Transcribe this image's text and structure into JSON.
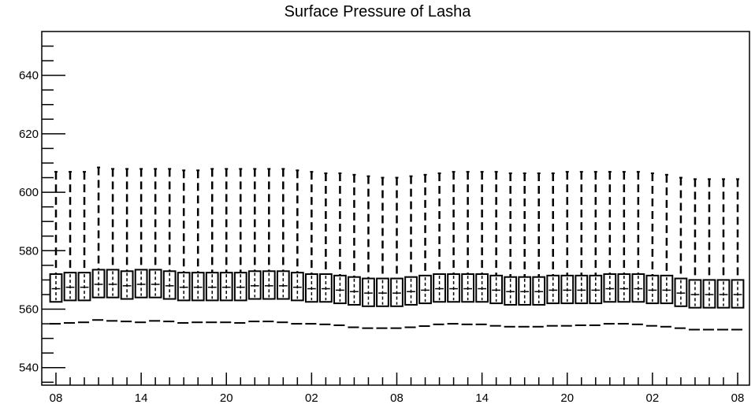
{
  "chart_data": {
    "type": "box",
    "title": "Surface Pressure of Lasha",
    "xlabel": "",
    "ylabel": "",
    "ylim": [
      534,
      655
    ],
    "yticks": [
      540,
      560,
      580,
      600,
      620,
      640
    ],
    "xticks": [
      {
        "index": 0,
        "label": "08"
      },
      {
        "index": 6,
        "label": "14"
      },
      {
        "index": 12,
        "label": "20"
      },
      {
        "index": 18,
        "label": "02"
      },
      {
        "index": 24,
        "label": "08"
      },
      {
        "index": 30,
        "label": "14"
      },
      {
        "index": 36,
        "label": "20"
      },
      {
        "index": 42,
        "label": "02"
      },
      {
        "index": 48,
        "label": "08"
      }
    ],
    "boxes": {
      "q1": [
        562.5,
        563,
        563,
        564,
        564,
        563.5,
        564,
        564,
        563.5,
        563,
        563,
        563,
        563,
        563,
        563.5,
        563.5,
        563.5,
        563,
        562.5,
        562.5,
        562,
        561.5,
        561,
        561,
        561,
        561.5,
        562,
        562.5,
        562.5,
        562.5,
        562.5,
        562,
        561.5,
        561.5,
        561.5,
        562,
        562,
        562,
        562,
        562.5,
        562.5,
        562.5,
        562,
        562,
        561,
        560.5,
        560.5,
        560.5,
        560.5
      ],
      "median": [
        567,
        567.5,
        567.5,
        568.5,
        568.5,
        568,
        568.5,
        568.5,
        568,
        567.5,
        567.5,
        567.5,
        567.5,
        567.5,
        568,
        568,
        568,
        567.5,
        567,
        567,
        566.5,
        566,
        565.5,
        565.5,
        565.5,
        566,
        566.5,
        567,
        567,
        567,
        567,
        566.5,
        566,
        566,
        566,
        566.5,
        566.5,
        566.5,
        566.5,
        567,
        567,
        567,
        566.5,
        566.5,
        565.5,
        565,
        565,
        565,
        565
      ],
      "q3": [
        572,
        572.5,
        572.5,
        573.5,
        573.5,
        573,
        573.5,
        573.5,
        573,
        572.5,
        572.5,
        572.5,
        572.5,
        572.5,
        573,
        573,
        573,
        572.5,
        572,
        572,
        571.5,
        571,
        570.5,
        570.5,
        570.5,
        571,
        571.5,
        572,
        572,
        572,
        572,
        571.5,
        571,
        571,
        571,
        571.5,
        571.5,
        571.5,
        571.5,
        572,
        572,
        572,
        571.5,
        571.5,
        570.5,
        570,
        570,
        570,
        570
      ],
      "whisker_high": [
        607,
        607,
        607,
        608.5,
        608,
        608,
        608,
        608,
        608,
        607.5,
        607.5,
        608,
        608,
        608,
        608,
        608,
        608,
        607.5,
        607,
        606.5,
        606.5,
        606,
        605.5,
        605,
        605,
        605.5,
        606,
        606.5,
        607,
        607,
        607,
        607,
        606.5,
        606.5,
        606.5,
        606.5,
        607,
        607,
        607,
        607,
        607,
        607,
        606.5,
        606,
        605,
        604.5,
        604.5,
        604.5,
        604.5
      ],
      "whisker_low": [
        555,
        555.3,
        555.5,
        556.3,
        556,
        555.8,
        555.5,
        556,
        555.8,
        555.3,
        555.5,
        555.5,
        555.5,
        555.3,
        555.8,
        555.8,
        555.5,
        555,
        555,
        554.8,
        554.5,
        553.8,
        553.5,
        553.5,
        553.5,
        553.8,
        554.2,
        554.8,
        555,
        554.8,
        554.8,
        554.3,
        554,
        554,
        554,
        554.3,
        554.3,
        554.5,
        554.5,
        555,
        555,
        554.8,
        554.3,
        554,
        553.5,
        553,
        553,
        553,
        553
      ]
    }
  }
}
